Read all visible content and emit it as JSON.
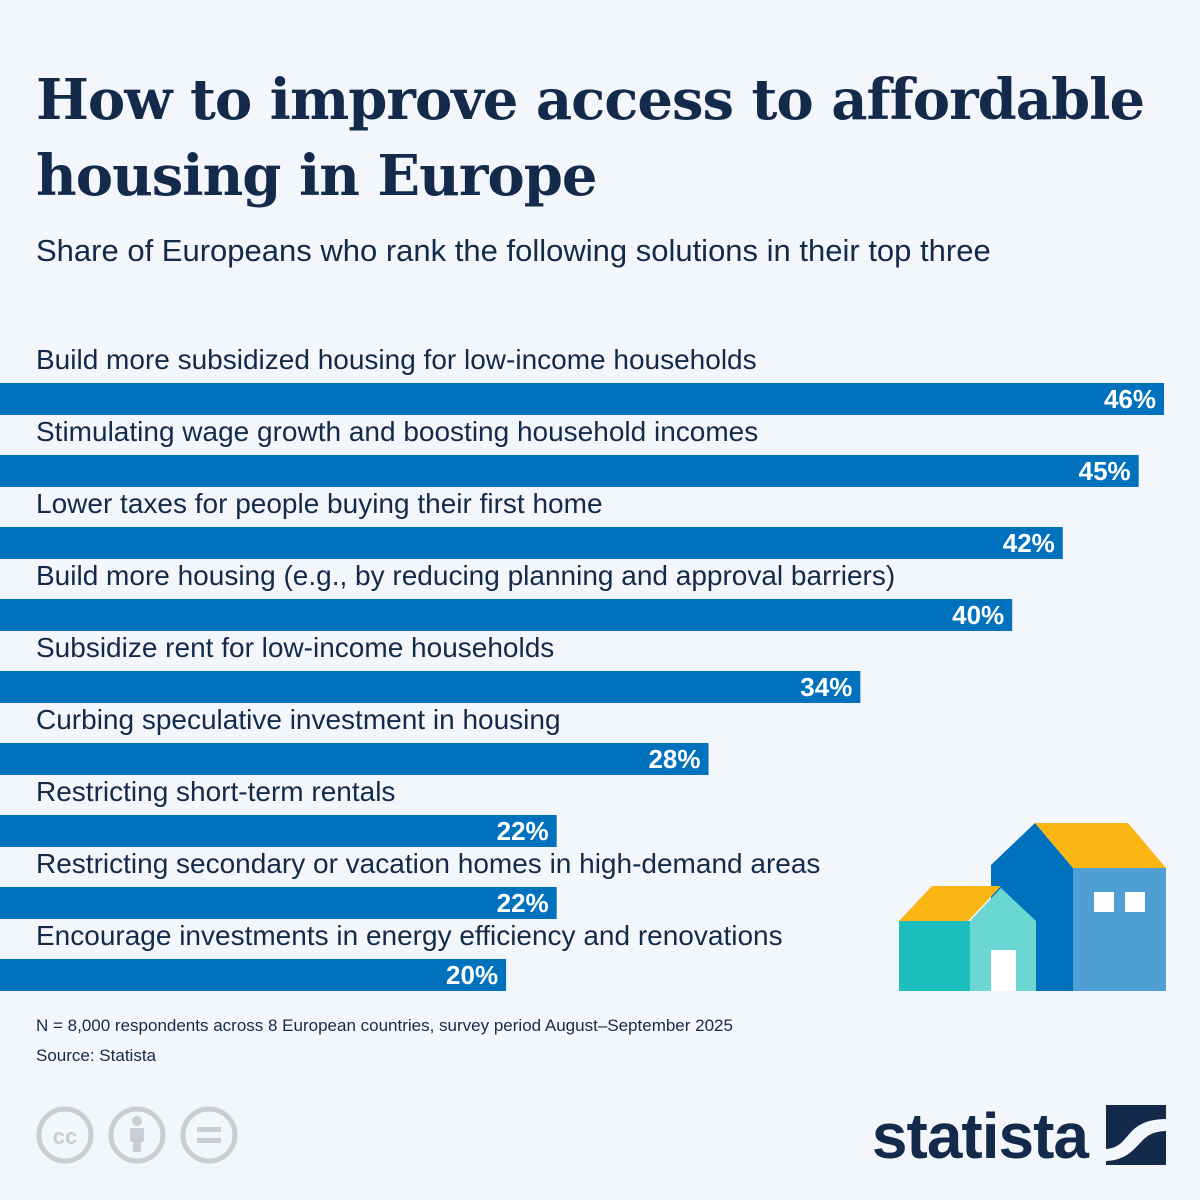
{
  "header": {
    "title": "How to improve access to affordable housing in Europe",
    "subtitle": "Share of Europeans who rank the following solutions in their top three"
  },
  "chart_data": {
    "type": "bar",
    "orientation": "horizontal",
    "categories": [
      "Build more subsidized housing for low-income households",
      "Stimulating wage growth and boosting household incomes",
      "Lower taxes for people buying their first home",
      "Build more housing (e.g., by reducing planning and approval barriers)",
      "Subsidize rent for low-income households",
      "Curbing speculative investment in housing",
      "Restricting short-term rentals",
      "Restricting secondary or vacation homes in high-demand areas",
      "Encourage investments in energy efficiency and renovations"
    ],
    "values": [
      46,
      45,
      42,
      40,
      34,
      28,
      22,
      22,
      20
    ],
    "value_labels": [
      "46%",
      "45%",
      "42%",
      "40%",
      "34%",
      "28%",
      "22%",
      "22%",
      "20%"
    ],
    "unit": "%",
    "xlim": [
      0,
      46
    ],
    "grid": false,
    "legend": "none",
    "colors": {
      "bar": "#0071bd",
      "bar_text": "#ffffff",
      "label_text": "#142a4b"
    }
  },
  "footer": {
    "note": "N = 8,000 respondents across 8 European countries, survey period August–September 2025",
    "source": "Source: Statista"
  },
  "license_icons": [
    "cc-icon",
    "attribution-icon",
    "no-derivatives-icon"
  ],
  "brand": {
    "logo_text": "statista"
  },
  "colors": {
    "background": "#f3f6fa",
    "text": "#142a4b",
    "icon_gray": "#c9ced6",
    "house_blue_dark": "#0071bd",
    "house_blue_light": "#4f9fd4",
    "house_teal": "#1cbfbd",
    "house_teal_light": "#6bd7d3",
    "house_roof": "#fbb614"
  }
}
